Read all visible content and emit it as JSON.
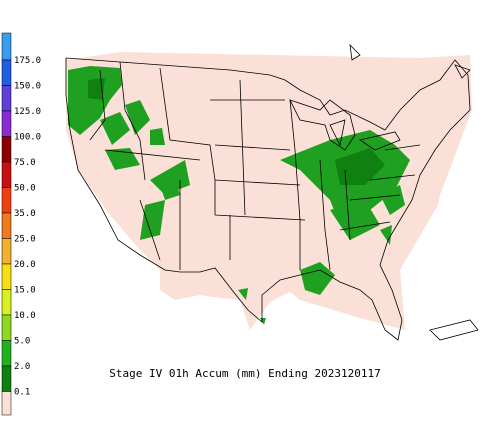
{
  "title": "Stage IV 01h Accum (mm) Ending 2023120117",
  "legend": {
    "labels": [
      "175.0",
      "150.0",
      "125.0",
      "100.0",
      "75.0",
      "50.0",
      "35.0",
      "25.0",
      "20.0",
      "15.0",
      "10.0",
      "5.0",
      "2.0",
      "0.1"
    ],
    "colors": [
      "#3a9cf0",
      "#1f5fe0",
      "#5f3fd8",
      "#8a2ad0",
      "#8b0000",
      "#c81010",
      "#f04010",
      "#f07a20",
      "#f4b030",
      "#f8e010",
      "#d8f020",
      "#8ed820",
      "#20b020",
      "#108010",
      "#fbe0d8"
    ]
  }
}
